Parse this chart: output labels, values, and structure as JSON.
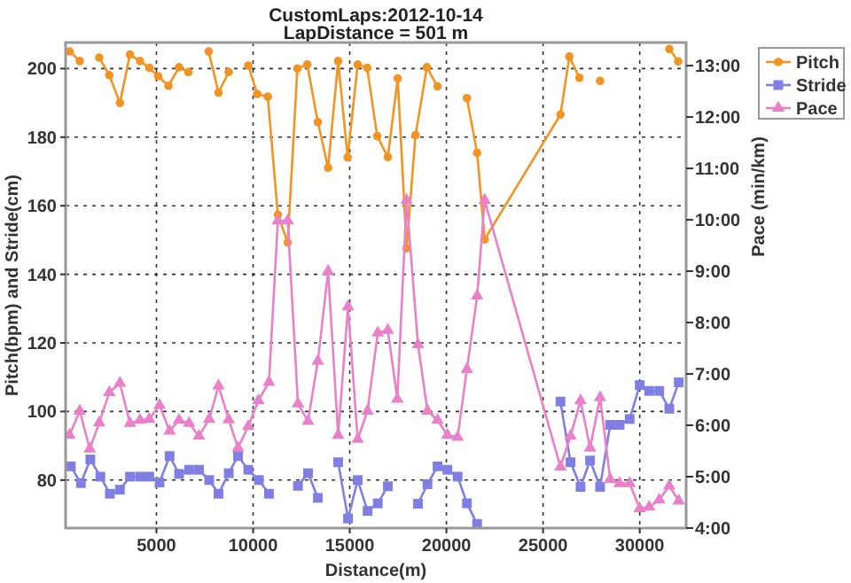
{
  "chart_data": {
    "type": "line",
    "title": "CustomLaps:2012-10-14",
    "subtitle": "LapDistance = 501 m",
    "xlabel": "Distance(m)",
    "ylabel": "Pitch(bpm) and Stride(cm)",
    "y2label": "Pace (min/km)",
    "xlim": [
      300,
      32400
    ],
    "xticks": [
      5000,
      10000,
      15000,
      20000,
      25000,
      30000
    ],
    "ylim": [
      66,
      207.6
    ],
    "yticks": [
      80,
      100,
      120,
      140,
      160,
      180,
      200
    ],
    "y2lim": [
      4,
      13.45
    ],
    "y2ticks": [
      {
        "value": 4,
        "label": "4:00"
      },
      {
        "value": 5,
        "label": "5:00"
      },
      {
        "value": 6,
        "label": "6:00"
      },
      {
        "value": 7,
        "label": "7:00"
      },
      {
        "value": 8,
        "label": "8:00"
      },
      {
        "value": 9,
        "label": "9:00"
      },
      {
        "value": 10,
        "label": "10:00"
      },
      {
        "value": 11,
        "label": "11:00"
      },
      {
        "value": 12,
        "label": "12:00"
      },
      {
        "value": 13,
        "label": "13:00"
      }
    ],
    "grid": true,
    "legend": "right",
    "line_style": "solid",
    "series": [
      {
        "name": "Pitch",
        "color": "#f39422",
        "marker": "circle",
        "x": [
          505,
          1030,
          1550,
          2040,
          2560,
          3110,
          3630,
          4150,
          4630,
          5090,
          5620,
          6170,
          6650,
          7200,
          7700,
          8210,
          8740,
          9260,
          9750,
          10210,
          10760,
          11280,
          11790,
          12290,
          12800,
          13350,
          13880,
          14400,
          14890,
          15410,
          15900,
          16420,
          16970,
          17480,
          17940,
          18400,
          18990,
          19540,
          20050,
          20580,
          21060,
          21590,
          21980,
          25900,
          26360,
          26880,
          27400,
          27950,
          28470,
          28960,
          29480,
          30000,
          30490,
          31010,
          31530,
          31990
        ],
        "values": [
          205,
          202.2,
          null,
          203.2,
          198.1,
          190,
          204.1,
          202.2,
          200.2,
          197.8,
          195,
          200.4,
          199,
          null,
          205,
          193,
          199,
          null,
          200.9,
          192.6,
          191.8,
          157.4,
          149.3,
          200,
          201.2,
          184.4,
          171.1,
          202.2,
          174.1,
          201.2,
          200.2,
          180.3,
          174.2,
          197.1,
          147.6,
          180.6,
          200.4,
          194.8,
          null,
          null,
          191.4,
          175.4,
          150.2,
          186.6,
          203.5,
          197.3,
          null,
          196.4,
          null,
          null,
          null,
          null,
          null,
          null,
          205.7,
          202.1
        ]
      },
      {
        "name": "Stride",
        "color": "#7f7fe3",
        "marker": "square",
        "x": [
          570,
          1090,
          1580,
          2100,
          2590,
          3110,
          3630,
          4150,
          4630,
          5160,
          5680,
          6170,
          6690,
          7200,
          7730,
          8210,
          8740,
          9220,
          9750,
          10300,
          10820,
          11280,
          11790,
          12320,
          12840,
          13350,
          13880,
          14400,
          14910,
          15410,
          15920,
          16450,
          16970,
          17480,
          18010,
          18530,
          19020,
          19540,
          20050,
          20580,
          21060,
          21590,
          22070,
          25900,
          26420,
          26940,
          27430,
          27950,
          28470,
          28960,
          29480,
          30000,
          30490,
          31010,
          31530,
          32020
        ],
        "values": [
          84,
          79.1,
          86,
          81,
          76,
          77.2,
          81,
          81,
          81,
          79.3,
          87,
          81.8,
          83,
          83,
          80,
          76,
          82,
          87,
          83,
          80,
          76,
          null,
          null,
          78.3,
          82,
          74.8,
          null,
          85.2,
          68.8,
          80,
          71,
          73.2,
          78.2,
          null,
          null,
          73.1,
          78.8,
          84,
          83,
          81,
          73.2,
          67.2,
          null,
          102.9,
          85.2,
          78,
          85.7,
          78,
          96.1,
          96.1,
          97.8,
          107.7,
          106,
          106,
          100.8,
          108.5
        ]
      },
      {
        "name": "Pace",
        "color": "#ea80c9",
        "marker": "triangle",
        "axis": "y2",
        "x": [
          505,
          1030,
          1550,
          2040,
          2560,
          3110,
          3630,
          4150,
          4630,
          5160,
          5680,
          6170,
          6690,
          7200,
          7730,
          8210,
          8740,
          9220,
          9750,
          10270,
          10820,
          11280,
          11790,
          12320,
          12840,
          13350,
          13880,
          14400,
          14910,
          15410,
          15920,
          16450,
          16970,
          17460,
          17940,
          18530,
          19020,
          19540,
          20050,
          20580,
          21060,
          21590,
          21980,
          25900,
          26420,
          26940,
          27430,
          27950,
          28470,
          28960,
          29480,
          30000,
          30490,
          31010,
          31530,
          32020
        ],
        "values": [
          5.81,
          6.28,
          5.54,
          6.05,
          6.64,
          6.82,
          6.04,
          6.1,
          6.12,
          6.39,
          5.89,
          6.1,
          6.04,
          5.79,
          6.12,
          6.77,
          6.11,
          5.56,
          5.98,
          6.48,
          6.84,
          9.98,
          9.98,
          6.42,
          6.08,
          7.25,
          9,
          5.81,
          8.31,
          5.73,
          6.28,
          7.8,
          7.85,
          6.51,
          10.38,
          7.57,
          6.28,
          6.1,
          5.81,
          5.77,
          7.09,
          8.52,
          10.38,
          5.19,
          5.79,
          6.48,
          5.56,
          6.54,
          4.95,
          4.87,
          4.87,
          4.38,
          4.41,
          4.55,
          4.82,
          4.53
        ]
      }
    ]
  }
}
